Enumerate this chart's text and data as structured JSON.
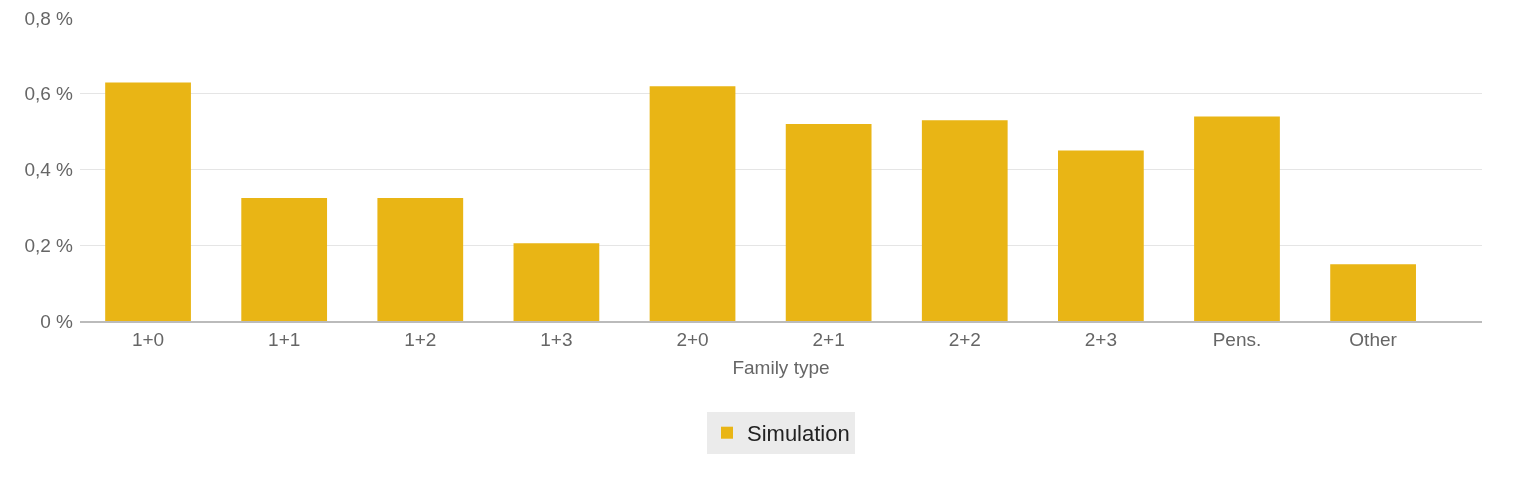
{
  "chart_data": {
    "type": "bar",
    "xlabel": "Family type",
    "categories": [
      "1+0",
      "1+1",
      "1+2",
      "1+3",
      "2+0",
      "2+1",
      "2+2",
      "2+3",
      "Pens.",
      "Other"
    ],
    "series": [
      {
        "name": "Simulation",
        "color": "#e9b515",
        "values": [
          0.63,
          0.325,
          0.325,
          0.205,
          0.62,
          0.52,
          0.53,
          0.45,
          0.54,
          0.15
        ]
      }
    ],
    "ylim": [
      0,
      0.8
    ],
    "yticks": [
      {
        "value": 0,
        "label": "0 %"
      },
      {
        "value": 0.2,
        "label": "0,2 %"
      },
      {
        "value": 0.4,
        "label": "0,4 %"
      },
      {
        "value": 0.6,
        "label": "0,6 %"
      },
      {
        "value": 0.8,
        "label": "0,8 %"
      }
    ],
    "grid": "y",
    "legend": "bottom"
  }
}
